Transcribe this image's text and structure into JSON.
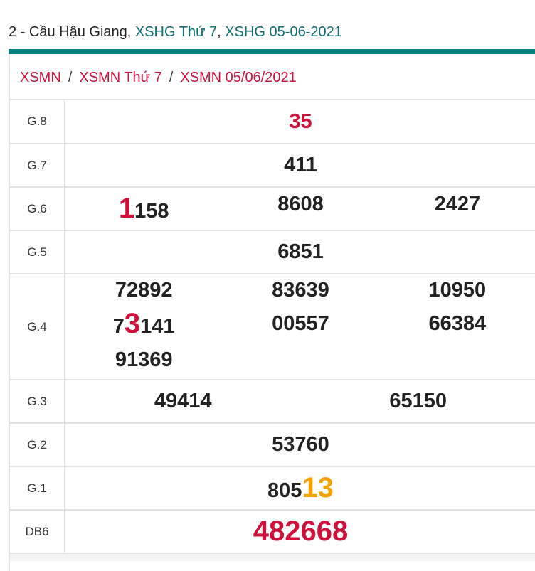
{
  "heading": {
    "prefix": "2 - Cầu Hậu Giang, ",
    "link1": "XSHG Thứ 7",
    "comma": ", ",
    "link2": "XSHG 05-06-2021"
  },
  "breadcrumb": [
    "XSMN",
    "XSMN Thứ 7",
    "XSMN 05/06/2021"
  ],
  "breadcrumb_sep": "/",
  "colors": {
    "accent": "#077d80",
    "red": "#d0103a",
    "orange": "#f5a000"
  },
  "prizes": [
    {
      "label": "G.8",
      "numbers": [
        [
          {
            "t": "35",
            "s": "red"
          }
        ]
      ]
    },
    {
      "label": "G.7",
      "numbers": [
        [
          {
            "t": "411"
          }
        ]
      ]
    },
    {
      "label": "G.6",
      "numbers": [
        [
          {
            "t": "1",
            "s": "red big"
          },
          {
            "t": "158"
          }
        ],
        [
          {
            "t": "8608"
          }
        ],
        [
          {
            "t": "2427"
          }
        ]
      ]
    },
    {
      "label": "G.5",
      "numbers": [
        [
          {
            "t": "6851"
          }
        ]
      ]
    },
    {
      "label": "G.4",
      "columns": [
        [
          [
            {
              "t": "72892"
            }
          ],
          [
            {
              "t": "7"
            },
            {
              "t": "3",
              "s": "red big"
            },
            {
              "t": "141"
            }
          ],
          [
            {
              "t": "91369"
            }
          ]
        ],
        [
          [
            {
              "t": "83639"
            }
          ],
          [
            {
              "t": "00557"
            }
          ]
        ],
        [
          [
            {
              "t": "10950"
            }
          ],
          [
            {
              "t": "66384"
            }
          ]
        ]
      ]
    },
    {
      "label": "G.3",
      "numbers": [
        [
          {
            "t": "49414"
          }
        ],
        [
          {
            "t": "65150"
          }
        ]
      ]
    },
    {
      "label": "G.2",
      "numbers": [
        [
          {
            "t": "53760"
          }
        ]
      ]
    },
    {
      "label": "G.1",
      "numbers": [
        [
          {
            "t": "805"
          },
          {
            "t": "13",
            "s": "org big"
          }
        ]
      ]
    },
    {
      "label": "DB6",
      "numbers": [
        [
          {
            "t": "482668",
            "s": "red big"
          }
        ]
      ]
    }
  ]
}
